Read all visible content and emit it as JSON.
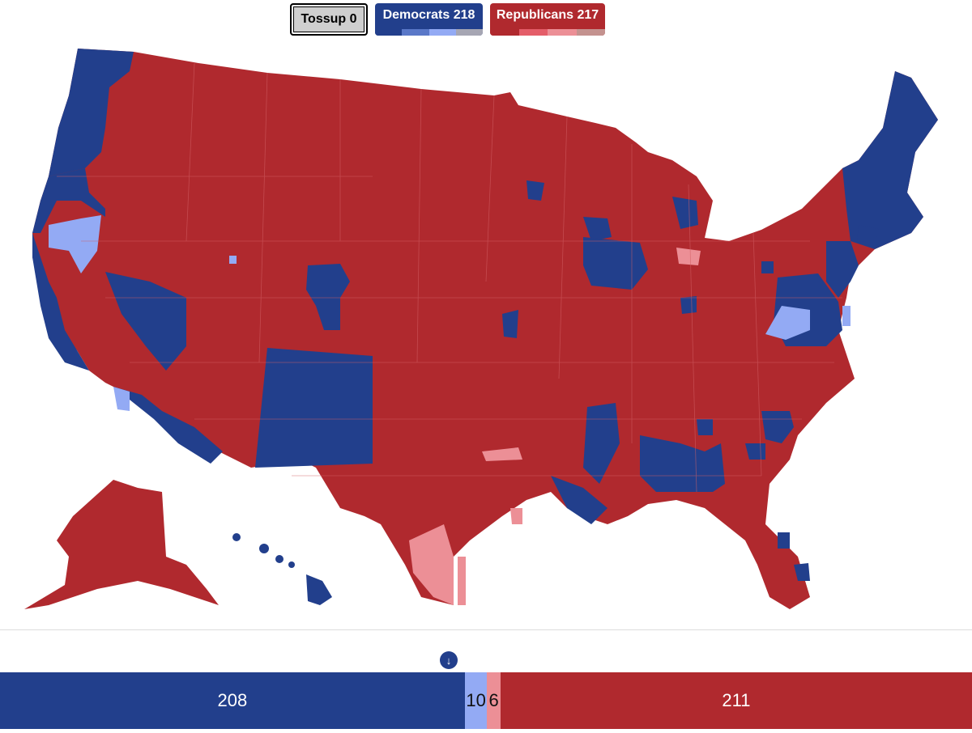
{
  "buttons": {
    "tossup": {
      "label": "Tossup 0"
    },
    "democrats": {
      "label": "Democrats 218",
      "strip_colors": [
        "#223f8c",
        "#5a78c8",
        "#93aaf4",
        "#a6a6b3"
      ]
    },
    "republicans": {
      "label": "Republicans 217",
      "strip_colors": [
        "#b0292e",
        "#e45d69",
        "#ec8f96",
        "#c4928f"
      ]
    }
  },
  "colors": {
    "dem_solid": "#223f8c",
    "dem_lean": "#93aaf4",
    "rep_solid": "#b0292e",
    "rep_lean": "#ec8f96",
    "tossup": "#cfcfcf"
  },
  "marker": {
    "icon": "arrow-down-icon",
    "glyph": "↓"
  },
  "seat_bar": {
    "total": 435,
    "segments": [
      {
        "key": "dem_solid",
        "value": 208,
        "label": "208"
      },
      {
        "key": "dem_lean",
        "value": 10,
        "label": "10"
      },
      {
        "key": "rep_lean",
        "value": 6,
        "label": "6"
      },
      {
        "key": "rep_solid",
        "value": 211,
        "label": "211"
      }
    ]
  }
}
